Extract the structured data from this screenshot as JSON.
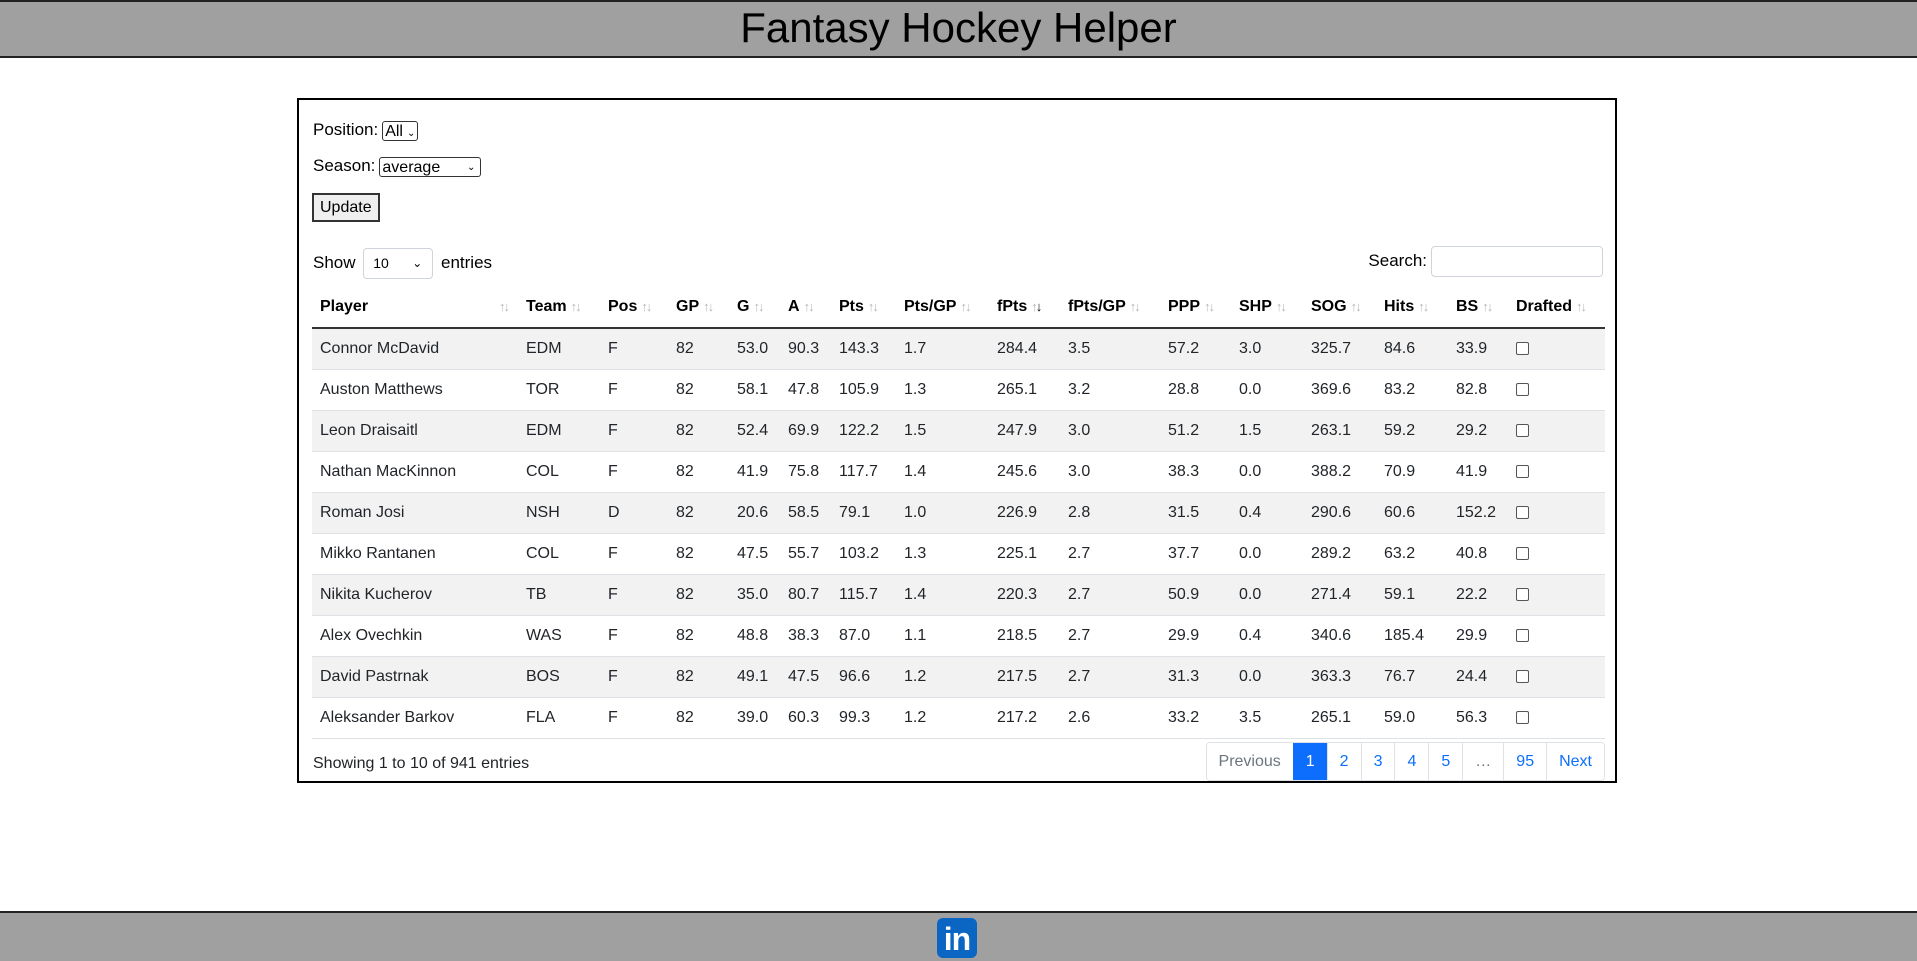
{
  "header": {
    "title": "Fantasy Hockey Helper"
  },
  "filters": {
    "position_label": "Position:",
    "position_value": "All",
    "season_label": "Season:",
    "season_value": "average",
    "update_label": "Update"
  },
  "table_controls": {
    "show_label": "Show",
    "length_value": "10",
    "entries_label": "entries",
    "search_label": "Search:",
    "search_value": ""
  },
  "table": {
    "columns": [
      "Player",
      "Team",
      "Pos",
      "GP",
      "G",
      "A",
      "Pts",
      "Pts/GP",
      "fPts",
      "fPts/GP",
      "PPP",
      "SHP",
      "SOG",
      "Hits",
      "BS",
      "Drafted"
    ],
    "sorted_column": "fPts",
    "sort_direction": "descending",
    "rows": [
      [
        "Connor McDavid",
        "EDM",
        "F",
        "82",
        "53.0",
        "90.3",
        "143.3",
        "1.7",
        "284.4",
        "3.5",
        "57.2",
        "3.0",
        "325.7",
        "84.6",
        "33.9"
      ],
      [
        "Auston Matthews",
        "TOR",
        "F",
        "82",
        "58.1",
        "47.8",
        "105.9",
        "1.3",
        "265.1",
        "3.2",
        "28.8",
        "0.0",
        "369.6",
        "83.2",
        "82.8"
      ],
      [
        "Leon Draisaitl",
        "EDM",
        "F",
        "82",
        "52.4",
        "69.9",
        "122.2",
        "1.5",
        "247.9",
        "3.0",
        "51.2",
        "1.5",
        "263.1",
        "59.2",
        "29.2"
      ],
      [
        "Nathan MacKinnon",
        "COL",
        "F",
        "82",
        "41.9",
        "75.8",
        "117.7",
        "1.4",
        "245.6",
        "3.0",
        "38.3",
        "0.0",
        "388.2",
        "70.9",
        "41.9"
      ],
      [
        "Roman Josi",
        "NSH",
        "D",
        "82",
        "20.6",
        "58.5",
        "79.1",
        "1.0",
        "226.9",
        "2.8",
        "31.5",
        "0.4",
        "290.6",
        "60.6",
        "152.2"
      ],
      [
        "Mikko Rantanen",
        "COL",
        "F",
        "82",
        "47.5",
        "55.7",
        "103.2",
        "1.3",
        "225.1",
        "2.7",
        "37.7",
        "0.0",
        "289.2",
        "63.2",
        "40.8"
      ],
      [
        "Nikita Kucherov",
        "TB",
        "F",
        "82",
        "35.0",
        "80.7",
        "115.7",
        "1.4",
        "220.3",
        "2.7",
        "50.9",
        "0.0",
        "271.4",
        "59.1",
        "22.2"
      ],
      [
        "Alex Ovechkin",
        "WAS",
        "F",
        "82",
        "48.8",
        "38.3",
        "87.0",
        "1.1",
        "218.5",
        "2.7",
        "29.9",
        "0.4",
        "340.6",
        "185.4",
        "29.9"
      ],
      [
        "David Pastrnak",
        "BOS",
        "F",
        "82",
        "49.1",
        "47.5",
        "96.6",
        "1.2",
        "217.5",
        "2.7",
        "31.3",
        "0.0",
        "363.3",
        "76.7",
        "24.4"
      ],
      [
        "Aleksander Barkov",
        "FLA",
        "F",
        "82",
        "39.0",
        "60.3",
        "99.3",
        "1.2",
        "217.2",
        "2.6",
        "33.2",
        "3.5",
        "265.1",
        "59.0",
        "56.3"
      ]
    ],
    "drafted": [
      false,
      false,
      false,
      false,
      false,
      false,
      false,
      false,
      false,
      false
    ]
  },
  "info_text": "Showing 1 to 10 of 941 entries",
  "pagination": {
    "previous": "Previous",
    "pages": [
      "1",
      "2",
      "3",
      "4",
      "5",
      "…",
      "95"
    ],
    "active": "1",
    "next": "Next"
  },
  "footer": {
    "linkedin_text": "in",
    "icon": "linkedin-icon"
  }
}
